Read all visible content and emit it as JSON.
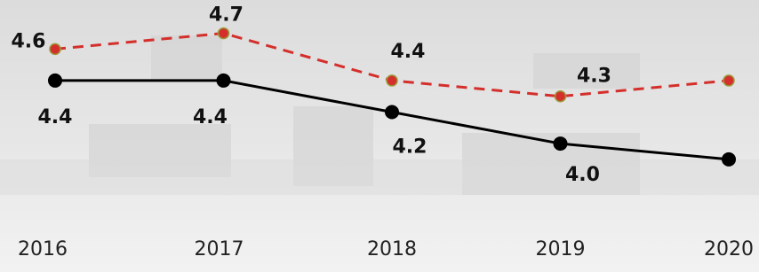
{
  "chart_data": {
    "type": "line",
    "categories": [
      "2016",
      "2017",
      "2018",
      "2019",
      "2020"
    ],
    "series": [
      {
        "name": null,
        "color": "#d42f2b",
        "dashed": true,
        "values": [
          4.6,
          4.7,
          4.4,
          4.3,
          4.4
        ],
        "value_labels": [
          "4.6",
          "4.7",
          "4.4",
          "4.3",
          null
        ]
      },
      {
        "name": null,
        "color": "#000000",
        "dashed": false,
        "values": [
          4.4,
          4.4,
          4.2,
          4.0,
          3.9
        ],
        "value_labels": [
          "4.4",
          "4.4",
          "4.2",
          "4.0",
          null
        ]
      }
    ],
    "ylim": [
      3.5,
      4.9
    ]
  }
}
